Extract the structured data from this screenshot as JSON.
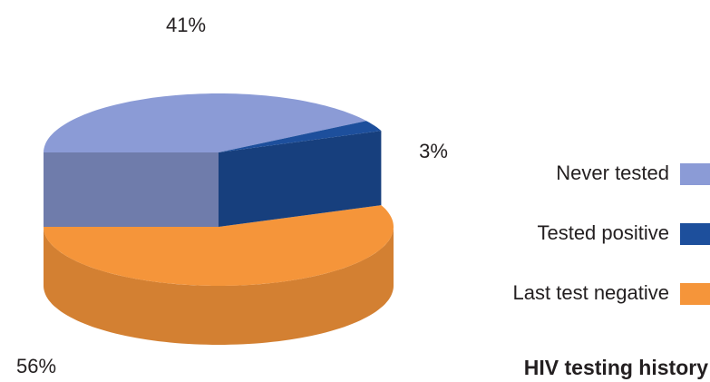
{
  "chart_data": {
    "type": "pie",
    "title": "HIV testing history",
    "categories": [
      "Never tested",
      "Tested positive",
      "Last test negative"
    ],
    "values": [
      41,
      3,
      56
    ],
    "value_labels": [
      "41%",
      "3%",
      "56%"
    ],
    "colors": [
      "#8b9bd6",
      "#1d4f9c",
      "#f5953a"
    ],
    "legend": "right"
  }
}
